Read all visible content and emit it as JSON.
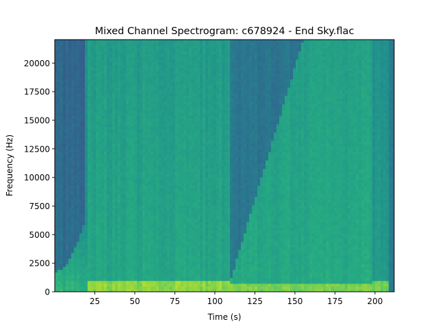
{
  "chart_data": {
    "type": "heatmap",
    "title": "Mixed Channel Spectrogram: c678924 - End Sky.flac",
    "xlabel": "Time (s)",
    "ylabel": "Frequency (Hz)",
    "xlim": [
      0,
      212
    ],
    "ylim": [
      0,
      22050
    ],
    "x_ticks": [
      25,
      50,
      75,
      100,
      125,
      150,
      175,
      200
    ],
    "y_ticks": [
      0,
      2500,
      5000,
      7500,
      10000,
      12500,
      15000,
      17500,
      20000
    ],
    "colormap": "viridis",
    "grid": false,
    "segments": [
      {
        "start": 0,
        "end": 21,
        "description_level": 0.3
      },
      {
        "start": 21,
        "end": 110,
        "description_level": 0.62
      },
      {
        "start": 110,
        "end": 198,
        "description_level": 0.6
      },
      {
        "start": 198,
        "end": 212,
        "description_level": 0.55
      }
    ],
    "colors": {
      "low": "#30688e",
      "mid": "#2ba580",
      "high": "#b5de2b",
      "peak": "#d6e21f"
    }
  }
}
